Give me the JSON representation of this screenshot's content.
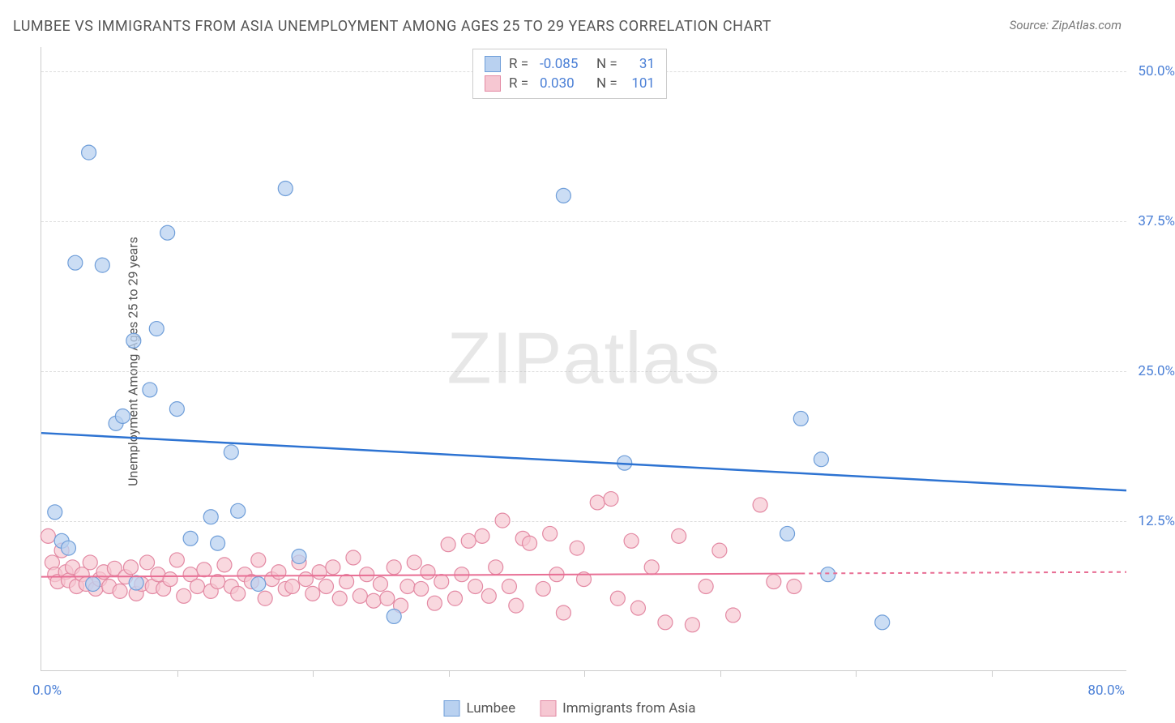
{
  "title": "LUMBEE VS IMMIGRANTS FROM ASIA UNEMPLOYMENT AMONG AGES 25 TO 29 YEARS CORRELATION CHART",
  "source": "Source: ZipAtlas.com",
  "y_axis_title": "Unemployment Among Ages 25 to 29 years",
  "watermark_a": "ZIP",
  "watermark_b": "atlas",
  "chart": {
    "type": "scatter",
    "background_color": "#ffffff",
    "grid_color": "#dddddd",
    "axis_color": "#cccccc",
    "xlim": [
      0,
      80
    ],
    "ylim": [
      0,
      52
    ],
    "x_origin_label": "0.0%",
    "x_max_label": "80.0%",
    "y_ticks": [
      {
        "v": 12.5,
        "label": "12.5%"
      },
      {
        "v": 25.0,
        "label": "25.0%"
      },
      {
        "v": 37.5,
        "label": "37.5%"
      },
      {
        "v": 50.0,
        "label": "50.0%"
      }
    ],
    "x_tick_positions": [
      10,
      20,
      30,
      40,
      50,
      60,
      70
    ],
    "series": [
      {
        "name": "Lumbee",
        "color_fill": "#b9d1f0",
        "color_stroke": "#6f9ed9",
        "line_color": "#2d73d2",
        "line_width": 2.5,
        "marker_radius": 9,
        "marker_opacity": 0.75,
        "R": "-0.085",
        "N": "31",
        "trend": {
          "x1": 0,
          "y1": 19.8,
          "x2": 80,
          "y2": 15.0
        },
        "trend_dash_after_x": 80,
        "points": [
          [
            1.0,
            13.2
          ],
          [
            1.5,
            10.8
          ],
          [
            2.0,
            10.2
          ],
          [
            2.5,
            34.0
          ],
          [
            3.5,
            43.2
          ],
          [
            3.8,
            7.2
          ],
          [
            4.5,
            33.8
          ],
          [
            5.5,
            20.6
          ],
          [
            6.0,
            21.2
          ],
          [
            6.8,
            27.5
          ],
          [
            7.0,
            7.3
          ],
          [
            8.0,
            23.4
          ],
          [
            8.5,
            28.5
          ],
          [
            9.3,
            36.5
          ],
          [
            10.0,
            21.8
          ],
          [
            11.0,
            11.0
          ],
          [
            12.5,
            12.8
          ],
          [
            13.0,
            10.6
          ],
          [
            14.0,
            18.2
          ],
          [
            14.5,
            13.3
          ],
          [
            16.0,
            7.2
          ],
          [
            18.0,
            40.2
          ],
          [
            19.0,
            9.5
          ],
          [
            26.0,
            4.5
          ],
          [
            38.5,
            39.6
          ],
          [
            43.0,
            17.3
          ],
          [
            55.0,
            11.4
          ],
          [
            56.0,
            21.0
          ],
          [
            57.5,
            17.6
          ],
          [
            62.0,
            4.0
          ],
          [
            58.0,
            8.0
          ]
        ]
      },
      {
        "name": "Immigrants from Asia",
        "color_fill": "#f6c7d2",
        "color_stroke": "#e389a3",
        "line_color": "#e86e94",
        "line_width": 2,
        "marker_radius": 9,
        "marker_opacity": 0.7,
        "R": "0.030",
        "N": "101",
        "trend": {
          "x1": 0,
          "y1": 7.8,
          "x2": 80,
          "y2": 8.2
        },
        "trend_dash_after_x": 56,
        "points": [
          [
            0.5,
            11.2
          ],
          [
            0.8,
            9.0
          ],
          [
            1.0,
            8.0
          ],
          [
            1.2,
            7.4
          ],
          [
            1.5,
            10.0
          ],
          [
            1.8,
            8.2
          ],
          [
            2.0,
            7.5
          ],
          [
            2.3,
            8.6
          ],
          [
            2.6,
            7.0
          ],
          [
            3.0,
            8.0
          ],
          [
            3.3,
            7.2
          ],
          [
            3.6,
            9.0
          ],
          [
            4.0,
            6.8
          ],
          [
            4.3,
            7.6
          ],
          [
            4.6,
            8.2
          ],
          [
            5.0,
            7.0
          ],
          [
            5.4,
            8.5
          ],
          [
            5.8,
            6.6
          ],
          [
            6.2,
            7.8
          ],
          [
            6.6,
            8.6
          ],
          [
            7.0,
            6.4
          ],
          [
            7.4,
            7.2
          ],
          [
            7.8,
            9.0
          ],
          [
            8.2,
            7.0
          ],
          [
            8.6,
            8.0
          ],
          [
            9.0,
            6.8
          ],
          [
            9.5,
            7.6
          ],
          [
            10.0,
            9.2
          ],
          [
            10.5,
            6.2
          ],
          [
            11.0,
            8.0
          ],
          [
            11.5,
            7.0
          ],
          [
            12.0,
            8.4
          ],
          [
            12.5,
            6.6
          ],
          [
            13.0,
            7.4
          ],
          [
            13.5,
            8.8
          ],
          [
            14.0,
            7.0
          ],
          [
            14.5,
            6.4
          ],
          [
            15.0,
            8.0
          ],
          [
            15.5,
            7.4
          ],
          [
            16.0,
            9.2
          ],
          [
            16.5,
            6.0
          ],
          [
            17.0,
            7.6
          ],
          [
            17.5,
            8.2
          ],
          [
            18.0,
            6.8
          ],
          [
            18.5,
            7.0
          ],
          [
            19.0,
            9.0
          ],
          [
            19.5,
            7.6
          ],
          [
            20.0,
            6.4
          ],
          [
            20.5,
            8.2
          ],
          [
            21.0,
            7.0
          ],
          [
            21.5,
            8.6
          ],
          [
            22.0,
            6.0
          ],
          [
            22.5,
            7.4
          ],
          [
            23.0,
            9.4
          ],
          [
            23.5,
            6.2
          ],
          [
            24.0,
            8.0
          ],
          [
            24.5,
            5.8
          ],
          [
            25.0,
            7.2
          ],
          [
            25.5,
            6.0
          ],
          [
            26.0,
            8.6
          ],
          [
            26.5,
            5.4
          ],
          [
            27.0,
            7.0
          ],
          [
            27.5,
            9.0
          ],
          [
            28.0,
            6.8
          ],
          [
            28.5,
            8.2
          ],
          [
            29.0,
            5.6
          ],
          [
            29.5,
            7.4
          ],
          [
            30.0,
            10.5
          ],
          [
            30.5,
            6.0
          ],
          [
            31.0,
            8.0
          ],
          [
            31.5,
            10.8
          ],
          [
            32.0,
            7.0
          ],
          [
            32.5,
            11.2
          ],
          [
            33.0,
            6.2
          ],
          [
            33.5,
            8.6
          ],
          [
            34.0,
            12.5
          ],
          [
            34.5,
            7.0
          ],
          [
            35.0,
            5.4
          ],
          [
            35.5,
            11.0
          ],
          [
            36.0,
            10.6
          ],
          [
            37.0,
            6.8
          ],
          [
            37.5,
            11.4
          ],
          [
            38.0,
            8.0
          ],
          [
            38.5,
            4.8
          ],
          [
            39.5,
            10.2
          ],
          [
            40.0,
            7.6
          ],
          [
            41.0,
            14.0
          ],
          [
            42.0,
            14.3
          ],
          [
            42.5,
            6.0
          ],
          [
            43.5,
            10.8
          ],
          [
            44.0,
            5.2
          ],
          [
            45.0,
            8.6
          ],
          [
            46.0,
            4.0
          ],
          [
            47.0,
            11.2
          ],
          [
            48.0,
            3.8
          ],
          [
            49.0,
            7.0
          ],
          [
            50.0,
            10.0
          ],
          [
            51.0,
            4.6
          ],
          [
            53.0,
            13.8
          ],
          [
            54.0,
            7.4
          ],
          [
            55.5,
            7.0
          ]
        ]
      }
    ]
  },
  "legend_bottom": [
    {
      "label": "Lumbee",
      "fill": "#b9d1f0",
      "stroke": "#6f9ed9"
    },
    {
      "label": "Immigrants from Asia",
      "fill": "#f6c7d2",
      "stroke": "#e389a3"
    }
  ]
}
